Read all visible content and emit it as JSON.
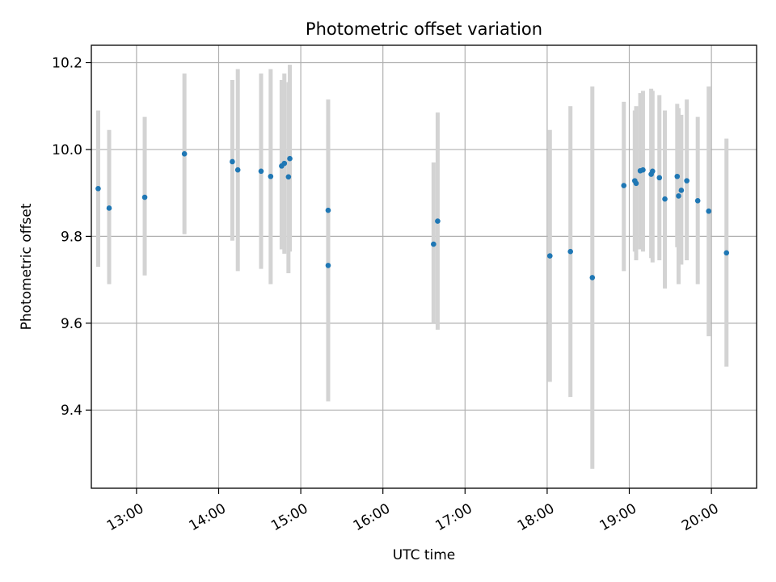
{
  "chart_data": {
    "type": "scatter",
    "title": "Photometric offset variation",
    "xlabel": "UTC time",
    "ylabel": "Photometric offset",
    "x_unit": "UTC time (HH:MM)",
    "xlim": [
      "12:27",
      "20:33"
    ],
    "ylim": [
      9.22,
      10.24
    ],
    "x_ticks": [
      "13:00",
      "14:00",
      "15:00",
      "16:00",
      "17:00",
      "18:00",
      "19:00",
      "20:00"
    ],
    "y_ticks": [
      "9.4",
      "9.6",
      "9.8",
      "10.0",
      "10.2"
    ],
    "grid": true,
    "point_color": "#1f77b4",
    "errorbar_color": "#d3d3d3",
    "points": [
      {
        "x": "12:32",
        "y": 9.91,
        "ylow": 9.73,
        "yhigh": 10.09
      },
      {
        "x": "12:40",
        "y": 9.865,
        "ylow": 9.69,
        "yhigh": 10.045
      },
      {
        "x": "13:06",
        "y": 9.89,
        "ylow": 9.71,
        "yhigh": 10.075
      },
      {
        "x": "13:35",
        "y": 9.99,
        "ylow": 9.805,
        "yhigh": 10.175
      },
      {
        "x": "14:10",
        "y": 9.972,
        "ylow": 9.79,
        "yhigh": 10.16
      },
      {
        "x": "14:14",
        "y": 9.953,
        "ylow": 9.72,
        "yhigh": 10.185
      },
      {
        "x": "14:31",
        "y": 9.95,
        "ylow": 9.725,
        "yhigh": 10.175
      },
      {
        "x": "14:38",
        "y": 9.938,
        "ylow": 9.69,
        "yhigh": 10.185
      },
      {
        "x": "14:46",
        "y": 9.962,
        "ylow": 9.77,
        "yhigh": 10.16
      },
      {
        "x": "14:48",
        "y": 9.968,
        "ylow": 9.76,
        "yhigh": 10.175
      },
      {
        "x": "14:51",
        "y": 9.937,
        "ylow": 9.715,
        "yhigh": 10.155
      },
      {
        "x": "14:52",
        "y": 9.979,
        "ylow": 9.765,
        "yhigh": 10.195
      },
      {
        "x": "15:20",
        "y": 9.86,
        "ylow": 9.665,
        "yhigh": 10.055
      },
      {
        "x": "15:20",
        "y": 9.733,
        "ylow": 9.42,
        "yhigh": 10.115
      },
      {
        "x": "16:37",
        "y": 9.782,
        "ylow": 9.6,
        "yhigh": 9.97
      },
      {
        "x": "16:40",
        "y": 9.835,
        "ylow": 9.585,
        "yhigh": 10.085
      },
      {
        "x": "18:02",
        "y": 9.755,
        "ylow": 9.465,
        "yhigh": 10.045
      },
      {
        "x": "18:17",
        "y": 9.765,
        "ylow": 9.43,
        "yhigh": 10.1
      },
      {
        "x": "18:33",
        "y": 9.705,
        "ylow": 9.265,
        "yhigh": 10.145
      },
      {
        "x": "18:56",
        "y": 9.917,
        "ylow": 9.72,
        "yhigh": 10.11
      },
      {
        "x": "19:04",
        "y": 9.928,
        "ylow": 9.765,
        "yhigh": 10.09
      },
      {
        "x": "19:05",
        "y": 9.922,
        "ylow": 9.745,
        "yhigh": 10.1
      },
      {
        "x": "19:08",
        "y": 9.951,
        "ylow": 9.77,
        "yhigh": 10.13
      },
      {
        "x": "19:10",
        "y": 9.953,
        "ylow": 9.765,
        "yhigh": 10.135
      },
      {
        "x": "19:16",
        "y": 9.943,
        "ylow": 9.75,
        "yhigh": 10.14
      },
      {
        "x": "19:17",
        "y": 9.95,
        "ylow": 9.74,
        "yhigh": 10.135
      },
      {
        "x": "19:22",
        "y": 9.935,
        "ylow": 9.745,
        "yhigh": 10.125
      },
      {
        "x": "19:26",
        "y": 9.886,
        "ylow": 9.68,
        "yhigh": 10.09
      },
      {
        "x": "19:35",
        "y": 9.938,
        "ylow": 9.775,
        "yhigh": 10.105
      },
      {
        "x": "19:36",
        "y": 9.893,
        "ylow": 9.69,
        "yhigh": 10.095
      },
      {
        "x": "19:38",
        "y": 9.906,
        "ylow": 9.735,
        "yhigh": 10.08
      },
      {
        "x": "19:42",
        "y": 9.928,
        "ylow": 9.745,
        "yhigh": 10.115
      },
      {
        "x": "19:50",
        "y": 9.882,
        "ylow": 9.69,
        "yhigh": 10.075
      },
      {
        "x": "19:58",
        "y": 9.858,
        "ylow": 9.57,
        "yhigh": 10.145
      },
      {
        "x": "20:11",
        "y": 9.762,
        "ylow": 9.5,
        "yhigh": 10.025
      }
    ]
  }
}
